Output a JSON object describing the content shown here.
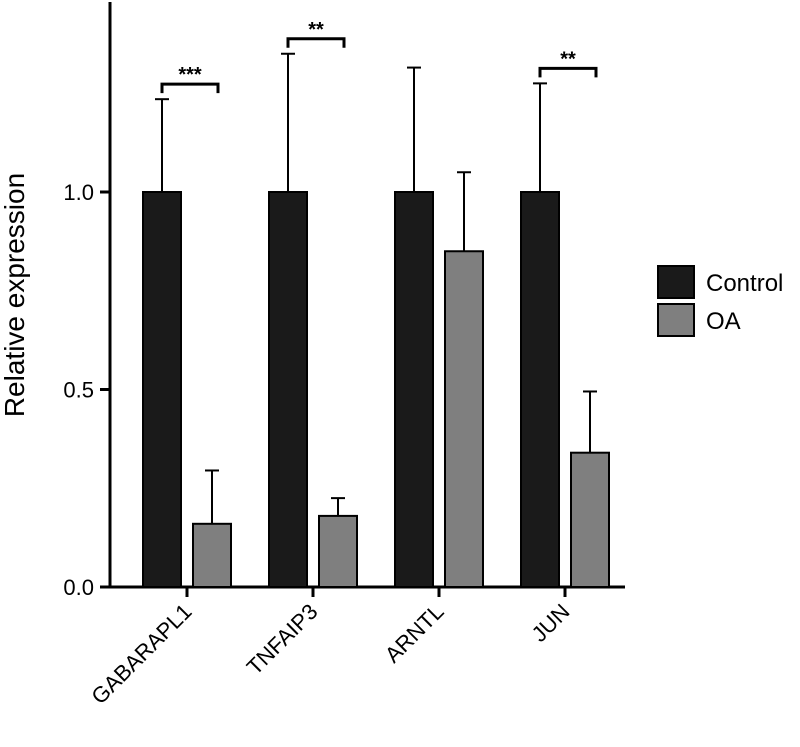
{
  "chart_data": {
    "type": "bar",
    "title": "",
    "xlabel": "",
    "ylabel": "Relative expression",
    "ylim": [
      0,
      1.5
    ],
    "yticks": [
      "0.0",
      "0.5",
      "1.0"
    ],
    "yticks_values": [
      0,
      0.5,
      1.0
    ],
    "categories": [
      "GABARAPL1",
      "TNFAIP3",
      "ARNTL",
      "JUN"
    ],
    "series": [
      {
        "name": "Control",
        "color": "#1a1a1a",
        "values": [
          1.0,
          1.0,
          1.0,
          1.0
        ],
        "errors": [
          0.235,
          0.35,
          0.315,
          0.275
        ]
      },
      {
        "name": "OA",
        "color": "#7f7f7f",
        "values": [
          0.16,
          0.18,
          0.85,
          0.34
        ],
        "errors": [
          0.135,
          0.045,
          0.2,
          0.155
        ]
      }
    ],
    "significance": [
      {
        "category": "GABARAPL1",
        "label": "***"
      },
      {
        "category": "TNFAIP3",
        "label": "**"
      },
      {
        "category": "JUN",
        "label": "**"
      }
    ],
    "legend": {
      "position": "right",
      "entries": [
        "Control",
        "OA"
      ]
    },
    "grid": false
  }
}
